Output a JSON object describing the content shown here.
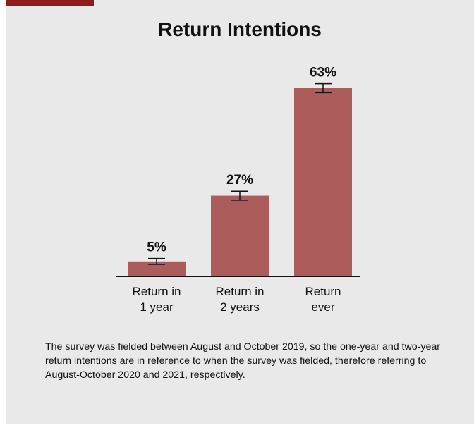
{
  "chart_data": {
    "type": "bar",
    "title": "Return Intentions",
    "categories": [
      "Return in 1 year",
      "Return in 2 years",
      "Return ever"
    ],
    "values": [
      5,
      27,
      63
    ],
    "value_labels": [
      "5%",
      "27%",
      "63%"
    ],
    "errors": [
      1,
      1.5,
      1.5
    ],
    "color": "#ad5c5c",
    "note": "The survey was fielded between August and October 2019, so the one-year and two-year return intentions are in reference to when the survey was fielded, therefore referring to August-October 2020 and 2021, respectively."
  }
}
